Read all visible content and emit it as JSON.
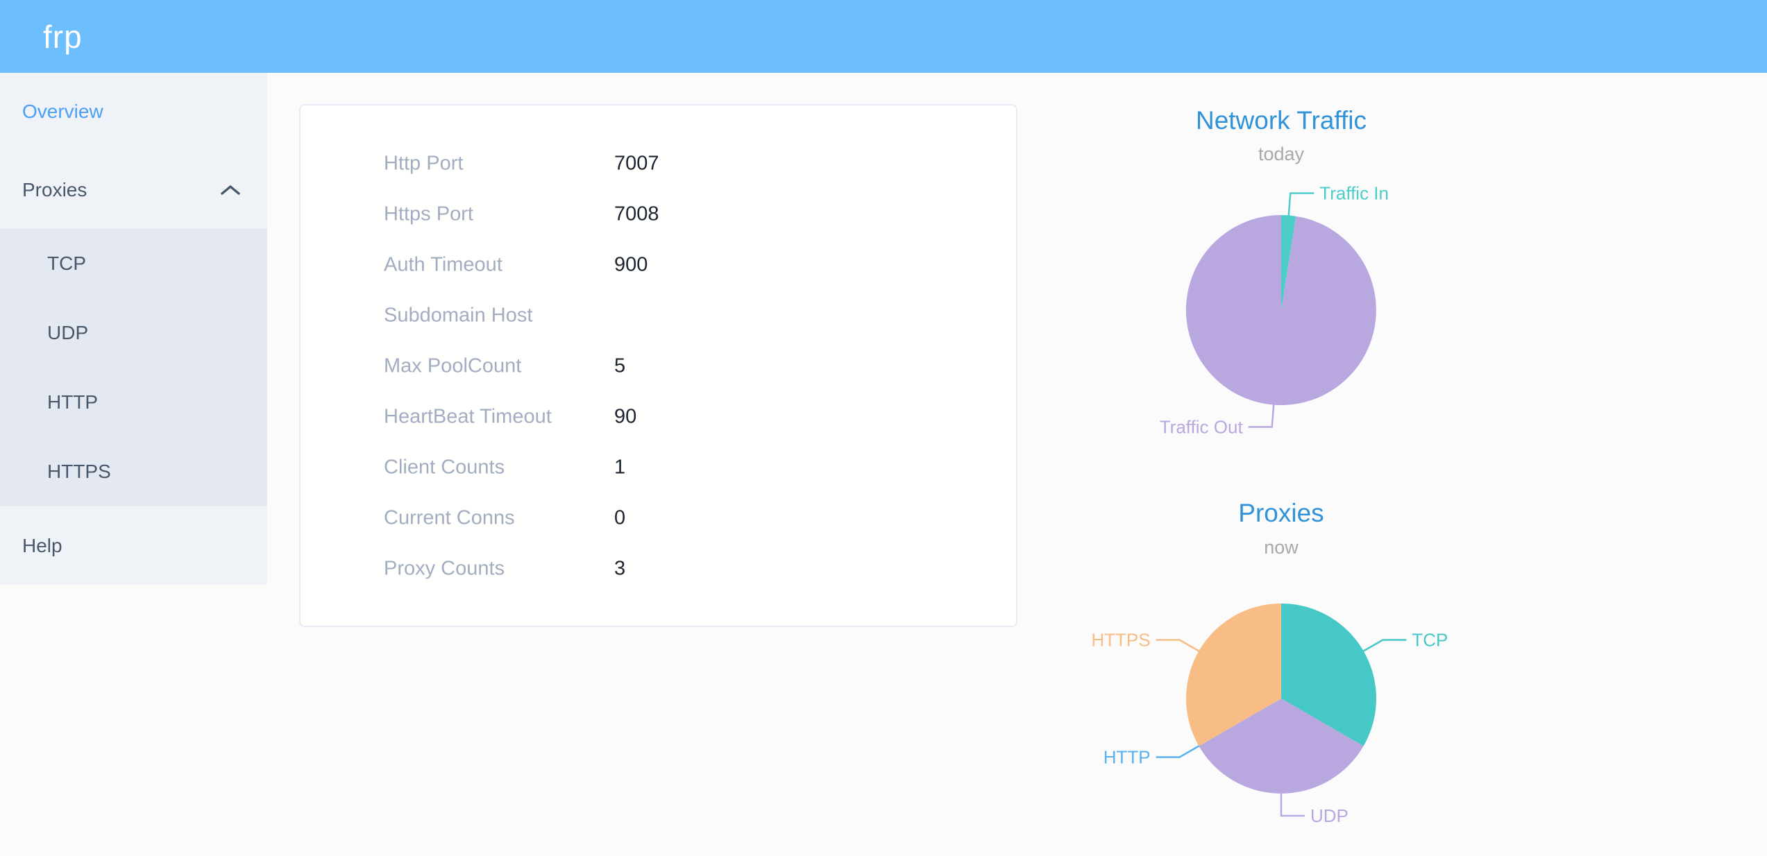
{
  "header": {
    "logo": "frp"
  },
  "sidebar": {
    "overview": "Overview",
    "proxies": {
      "label": "Proxies",
      "expanded": true,
      "children": [
        "TCP",
        "UDP",
        "HTTP",
        "HTTPS"
      ]
    },
    "help": "Help"
  },
  "table": {
    "rows": [
      {
        "label": "Http Port",
        "value": "7007"
      },
      {
        "label": "Https Port",
        "value": "7008"
      },
      {
        "label": "Auth Timeout",
        "value": "900"
      },
      {
        "label": "Subdomain Host",
        "value": ""
      },
      {
        "label": "Max PoolCount",
        "value": "5"
      },
      {
        "label": "HeartBeat Timeout",
        "value": "90"
      },
      {
        "label": "Client Counts",
        "value": "1"
      },
      {
        "label": "Current Conns",
        "value": "0"
      },
      {
        "label": "Proxy Counts",
        "value": "3"
      }
    ]
  },
  "chart_data": [
    {
      "type": "pie",
      "title": "Network Traffic",
      "subtitle": "today",
      "legend_position": "none",
      "labels": "outside",
      "series": [
        {
          "name": "Traffic In",
          "value": 2.5,
          "color": "#4ccdca"
        },
        {
          "name": "Traffic Out",
          "value": 97.5,
          "color": "#b9a7e0"
        }
      ],
      "unit": "percent"
    },
    {
      "type": "pie",
      "title": "Proxies",
      "subtitle": "now",
      "legend_position": "none",
      "labels": "outside",
      "series": [
        {
          "name": "TCP",
          "value": 1,
          "color": "#46c8c6"
        },
        {
          "name": "UDP",
          "value": 1,
          "color": "#b9a7e0"
        },
        {
          "name": "HTTP",
          "value": 0,
          "color": "#5ab1ef"
        },
        {
          "name": "HTTPS",
          "value": 1,
          "color": "#f8bd84"
        }
      ],
      "unit": "proxy count"
    }
  ],
  "colors": {
    "header_bg": "#6cbefc",
    "sidebar_bg": "#eff2f7",
    "submenu_bg": "#e4e8f1",
    "active_item": "#4aa0f6",
    "chart_title": "#3092d8",
    "label_gray": "#a2adc1"
  }
}
